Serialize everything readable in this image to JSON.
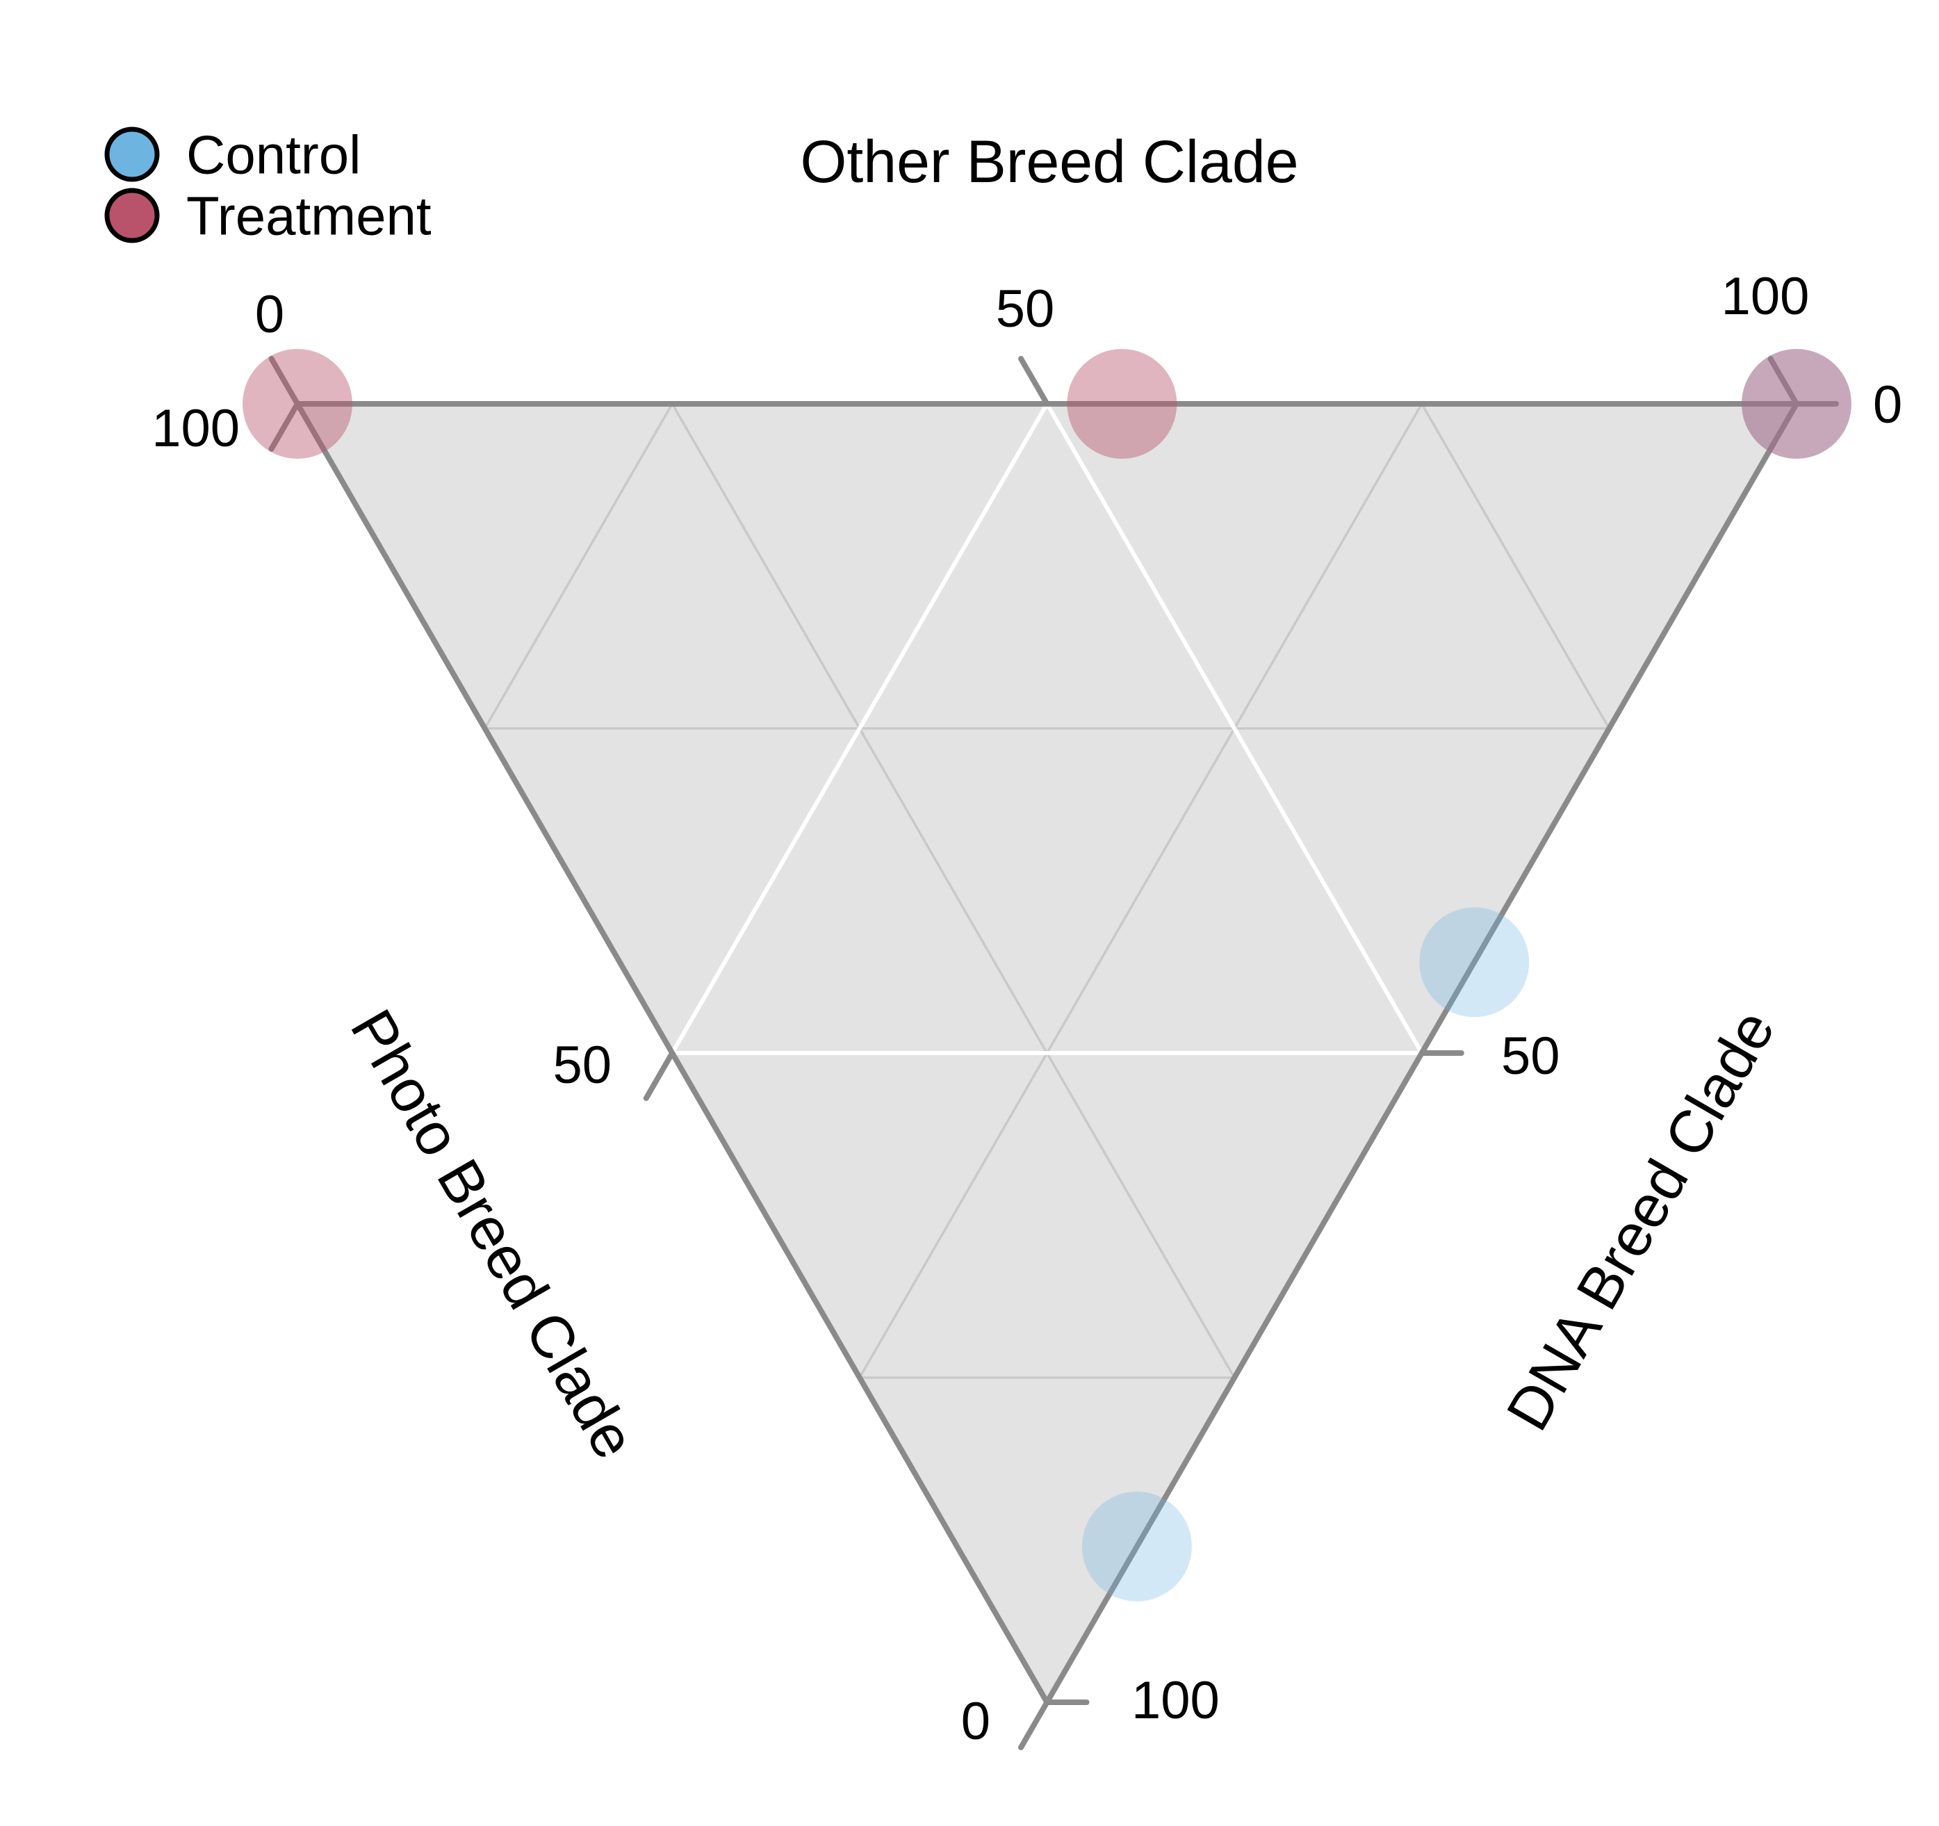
{
  "legend": {
    "items": [
      {
        "label": "Control",
        "color": "#6db4e0"
      },
      {
        "label": "Treatment",
        "color": "#b8536b"
      }
    ]
  },
  "axes": {
    "top": {
      "title": "Other Breed Clade",
      "tick_labels": [
        "0",
        "50",
        "100"
      ]
    },
    "left": {
      "title": "Photo Breed Clade",
      "tick_labels": [
        "100",
        "50",
        "0"
      ]
    },
    "right": {
      "title": "DNA Breed Clade",
      "tick_labels": [
        "0",
        "50",
        "100"
      ]
    }
  },
  "colors": {
    "panel": "#e3e3e3",
    "border": "#8a8a8a",
    "tick": "#8a8a8a",
    "grid_minor": "#c9c9c9",
    "grid_major": "#ffffff"
  },
  "chart_data": {
    "type": "scatter",
    "subtype": "ternary",
    "title": "",
    "axes": {
      "top": "Other Breed Clade",
      "left": "Photo Breed Clade",
      "right": "DNA Breed Clade"
    },
    "range": [
      0,
      100
    ],
    "gridlines": {
      "major": [
        50
      ],
      "minor": [
        25,
        75
      ]
    },
    "legend_position": "top-left",
    "series": [
      {
        "name": "Control",
        "color": "#6db4e0",
        "fill_opacity": 0.3,
        "points": [
          {
            "other": 100,
            "photo": 0,
            "dna": 0
          },
          {
            "other": 57,
            "photo": 0,
            "dna": 43
          },
          {
            "other": 12,
            "photo": 0,
            "dna": 88
          }
        ]
      },
      {
        "name": "Treatment",
        "color": "#b8536b",
        "fill_opacity": 0.43,
        "points": [
          {
            "other": 0,
            "photo": 100,
            "dna": 0
          },
          {
            "other": 55,
            "photo": 45,
            "dna": 0
          },
          {
            "other": 100,
            "photo": 0,
            "dna": 0
          }
        ]
      }
    ]
  }
}
